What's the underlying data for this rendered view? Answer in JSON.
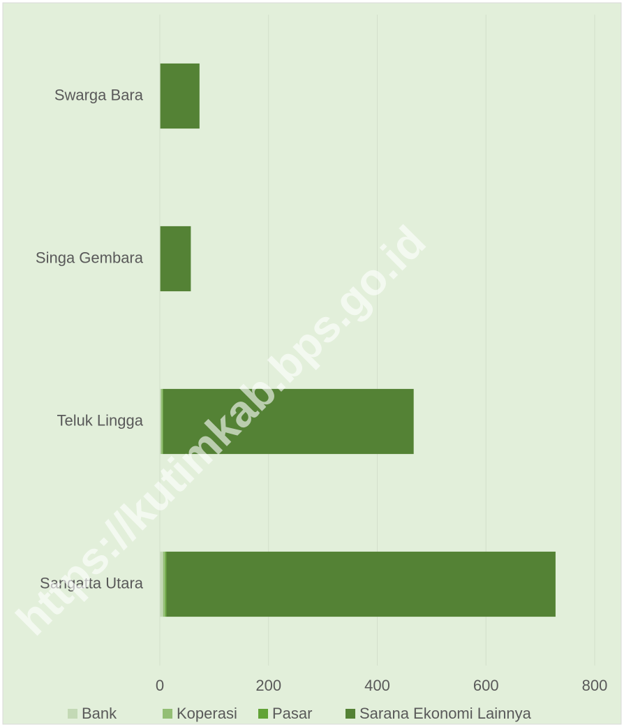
{
  "chart_data": {
    "type": "stacked-barh",
    "categories": [
      "Swarga Bara",
      "Singa Gembara",
      "Teluk Lingga",
      "Sangatta Utara"
    ],
    "series": [
      {
        "name": "Bank",
        "color": "#c3d9b5",
        "values": [
          0,
          0,
          2,
          6
        ]
      },
      {
        "name": "Koperasi",
        "color": "#93be74",
        "values": [
          0,
          0,
          3,
          4
        ]
      },
      {
        "name": "Pasar",
        "color": "#62a337",
        "values": [
          1,
          1,
          1,
          2
        ]
      },
      {
        "name": "Sarana Ekonomi Lainnya",
        "color": "#548235",
        "values": [
          72,
          56,
          461,
          716
        ]
      }
    ],
    "xlim": [
      0,
      800
    ],
    "xticks": [
      0,
      200,
      400,
      600,
      800
    ],
    "grid": true,
    "legend": "bottom",
    "watermark": "https://kutimkab.bps.go.id"
  }
}
